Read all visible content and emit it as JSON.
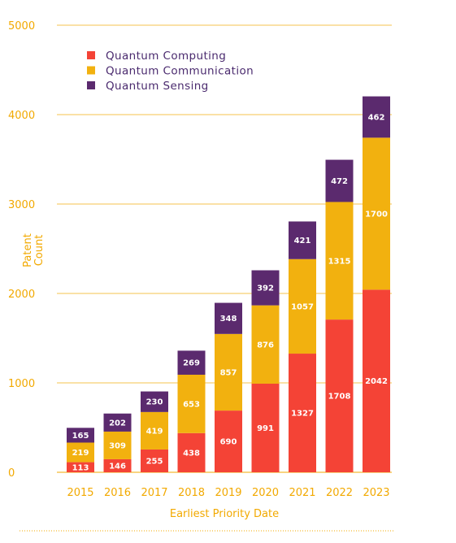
{
  "chart_data": {
    "type": "bar",
    "stacked": true,
    "title": "",
    "xlabel": "Earliest Priority Date",
    "ylabel": "Patent Count",
    "ylim": [
      0,
      5000
    ],
    "yticks": [
      "0",
      "1000",
      "2000",
      "3000",
      "4000",
      "5000"
    ],
    "grid": "horizontal",
    "legend_position": "top-left",
    "categories": [
      "2015",
      "2016",
      "2017",
      "2018",
      "2019",
      "2020",
      "2021",
      "2022",
      "2023"
    ],
    "series": [
      {
        "name": "Quantum Computing",
        "color": "#f44336",
        "values": [
          113,
          146,
          255,
          438,
          690,
          991,
          1327,
          1708,
          2042
        ]
      },
      {
        "name": "Quantum Communication",
        "color": "#f2b10f",
        "values": [
          219,
          309,
          419,
          653,
          857,
          876,
          1057,
          1315,
          1700
        ]
      },
      {
        "name": "Quantum Sensing",
        "color": "#5b2a6e",
        "values": [
          165,
          202,
          230,
          269,
          348,
          392,
          421,
          472,
          462
        ]
      }
    ]
  },
  "colors": {
    "axis": "#f2a900",
    "grid": "#f5c34d",
    "legend_text": "#4a2a6e"
  }
}
